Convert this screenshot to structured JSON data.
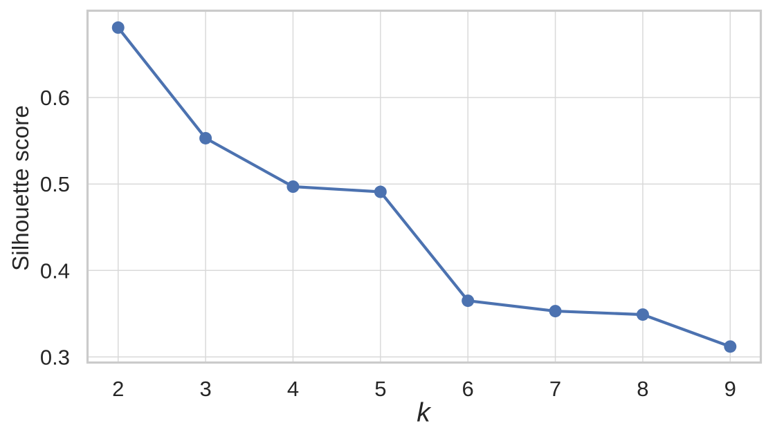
{
  "figure": {
    "xlabel": "k",
    "ylabel": "Silhouette score"
  },
  "chart_data": {
    "type": "line",
    "title": "",
    "xlabel": "k",
    "ylabel": "Silhouette score",
    "x": [
      2,
      3,
      4,
      5,
      6,
      7,
      8,
      9
    ],
    "series": [
      {
        "name": "silhouette-score",
        "values": [
          0.681,
          0.553,
          0.497,
          0.491,
          0.365,
          0.353,
          0.349,
          0.312
        ]
      }
    ],
    "x_tick_labels": [
      "2",
      "3",
      "4",
      "5",
      "6",
      "7",
      "8",
      "9"
    ],
    "y_ticks": [
      0.3,
      0.4,
      0.5,
      0.6
    ],
    "y_tick_labels": [
      "0.3",
      "0.4",
      "0.5",
      "0.6"
    ],
    "xlim": [
      1.65,
      9.35
    ],
    "ylim": [
      0.2935,
      0.7005
    ],
    "grid": true,
    "legend_position": "none",
    "marker": "circle",
    "colors": {
      "line": "#4c72b0",
      "marker": "#4c72b0",
      "grid": "#d9d9d9",
      "spine": "#cbcbcb",
      "text": "#262626",
      "background": "#ffffff"
    }
  }
}
